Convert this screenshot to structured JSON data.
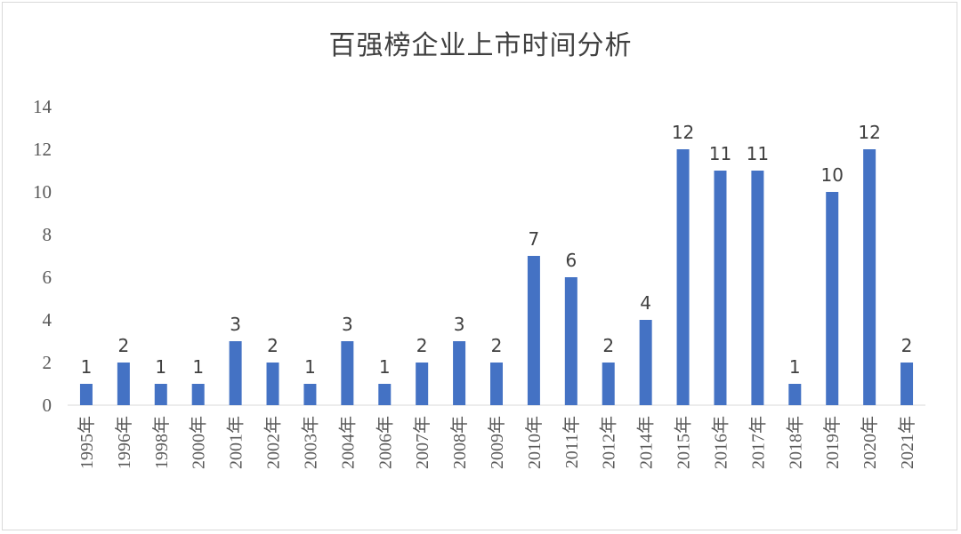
{
  "chart_data": {
    "type": "bar",
    "title": "百强榜企业上市时间分析",
    "categories": [
      "1995年",
      "1996年",
      "1998年",
      "2000年",
      "2001年",
      "2002年",
      "2003年",
      "2004年",
      "2006年",
      "2007年",
      "2008年",
      "2009年",
      "2010年",
      "2011年",
      "2012年",
      "2014年",
      "2015年",
      "2016年",
      "2017年",
      "2018年",
      "2019年",
      "2020年",
      "2021年"
    ],
    "values": [
      1,
      2,
      1,
      1,
      3,
      2,
      1,
      3,
      1,
      2,
      3,
      2,
      7,
      6,
      2,
      4,
      12,
      11,
      11,
      1,
      10,
      12,
      2
    ],
    "ylim": [
      0,
      14
    ],
    "yticks": [
      0,
      2,
      4,
      6,
      8,
      10,
      12,
      14
    ],
    "xlabel": "",
    "ylabel": "",
    "grid": false,
    "legend": "none",
    "bar_color": "#4472c4",
    "data_labels": true
  }
}
